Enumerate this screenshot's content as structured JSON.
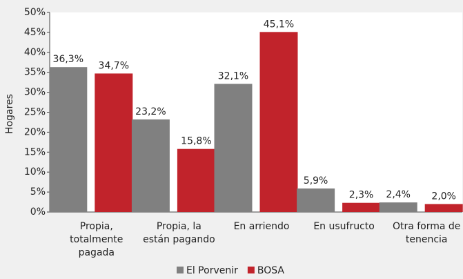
{
  "chart_data": {
    "type": "bar",
    "y_label": "Hogares",
    "categories": [
      "Propia, totalmente pagada",
      "Propia, la están pagando",
      "En arriendo",
      "En usufructo",
      "Otra forma de tenencia"
    ],
    "series": [
      {
        "name": "El Porvenir",
        "color": "#808080",
        "values": [
          36.3,
          23.2,
          32.1,
          5.9,
          2.4
        ],
        "value_labels": [
          "36,3%",
          "23,2%",
          "32,1%",
          "5,9%",
          "2,4%"
        ]
      },
      {
        "name": "BOSA",
        "color": "#c1232b",
        "values": [
          34.7,
          15.8,
          45.1,
          2.3,
          2.0
        ],
        "value_labels": [
          "34,7%",
          "15,8%",
          "45,1%",
          "2,3%",
          "2,0%"
        ]
      }
    ],
    "ylim": [
      0,
      50
    ],
    "yticks": [
      {
        "value": 0,
        "label": "0%"
      },
      {
        "value": 5,
        "label": "5%"
      },
      {
        "value": 10,
        "label": "10%"
      },
      {
        "value": 15,
        "label": "15%"
      },
      {
        "value": 20,
        "label": "20%"
      },
      {
        "value": 25,
        "label": "25%"
      },
      {
        "value": 30,
        "label": "30%"
      },
      {
        "value": 35,
        "label": "35%"
      },
      {
        "value": 40,
        "label": "40%"
      },
      {
        "value": 45,
        "label": "45%"
      },
      {
        "value": 50,
        "label": "50%"
      }
    ],
    "legend": "bottom"
  }
}
